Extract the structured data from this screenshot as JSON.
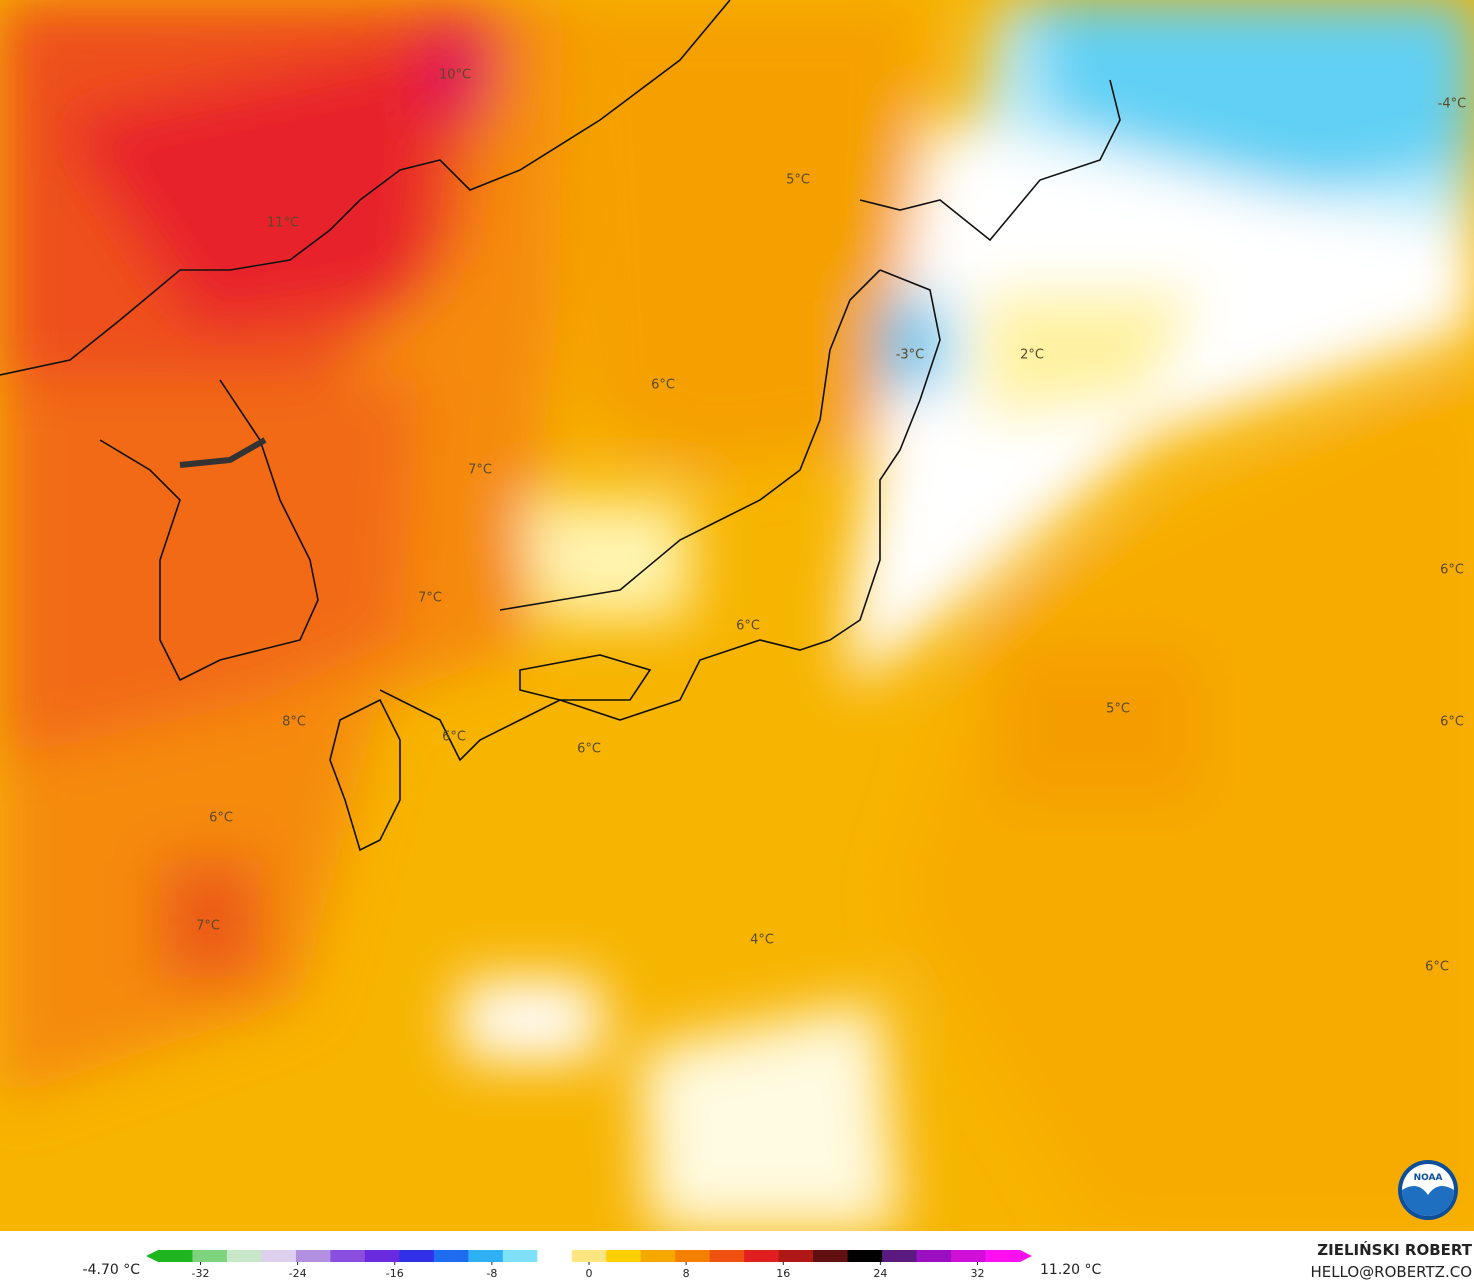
{
  "map": {
    "labels": [
      "10°C",
      "11°C",
      "5°C",
      "-4°C",
      "-3°C",
      "2°C",
      "6°C",
      "7°C",
      "7°C",
      "6°C",
      "6°C",
      "8°C",
      "6°C",
      "6°C",
      "5°C",
      "6°C",
      "6°C",
      "7°C",
      "4°C",
      "6°C"
    ]
  },
  "colorbar": {
    "min_label": "-4.70 °C",
    "max_label": "11.20 °C",
    "lim": [
      -35.5,
      35.5
    ],
    "ticks": [
      -32,
      -24,
      -16,
      -8,
      0,
      8,
      16,
      24,
      32
    ]
  },
  "credits": {
    "author": "ZIELIŃSKI ROBERT",
    "contact": "HELLO@ROBERTZ.CO",
    "logo": "NOAA"
  }
}
